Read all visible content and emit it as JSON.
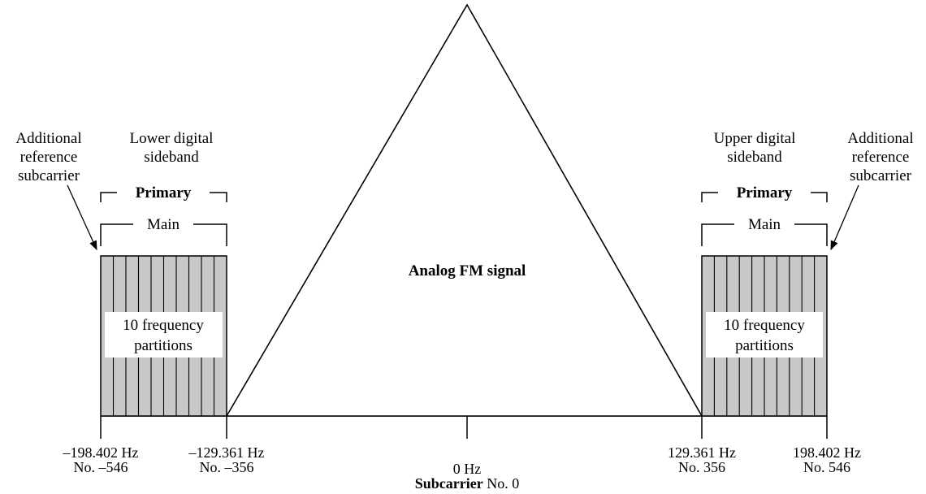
{
  "analog": {
    "label": "Analog FM signal"
  },
  "lower": {
    "title": [
      "Lower digital",
      "sideband"
    ],
    "primary": "Primary",
    "main": "Main",
    "partitions": [
      "10 frequency",
      "partitions"
    ],
    "ref_label": [
      "Additional",
      "reference",
      "subcarrier"
    ]
  },
  "upper": {
    "title": [
      "Upper digital",
      "sideband"
    ],
    "primary": "Primary",
    "main": "Main",
    "partitions": [
      "10 frequency",
      "partitions"
    ],
    "ref_label": [
      "Additional",
      "reference",
      "subcarrier"
    ]
  },
  "axis": {
    "ticks": [
      {
        "freq": "–198.402 Hz",
        "no": "No. –546"
      },
      {
        "freq": "–129.361 Hz",
        "no": "No. –356"
      },
      {
        "freq": "0 Hz",
        "no_bold": "Subcarrier",
        "no": " No. 0"
      },
      {
        "freq": "129.361 Hz",
        "no": "No. 356"
      },
      {
        "freq": "198.402 Hz",
        "no": "No. 546"
      }
    ]
  },
  "colors": {
    "sideband_fill": "#c8c8c8",
    "line": "#000000"
  }
}
